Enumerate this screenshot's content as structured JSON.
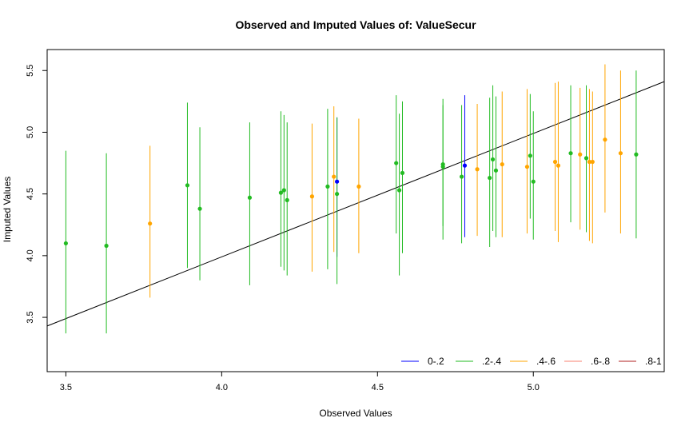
{
  "chart_data": {
    "type": "scatter",
    "title": "Observed and Imputed Values of: ValueSecur",
    "xlabel": "Observed Values",
    "ylabel": "Imputed Values",
    "xlim": [
      3.44,
      5.42
    ],
    "ylim": [
      3.06,
      5.67
    ],
    "x_ticks": [
      "3.5",
      "4.0",
      "4.5",
      "5.0"
    ],
    "y_ticks": [
      "3.5",
      "4.0",
      "4.5",
      "5.0",
      "5.5"
    ],
    "reference_line": {
      "x": [
        3.44,
        5.42
      ],
      "y": [
        3.43,
        5.41
      ]
    },
    "legend_position": "bottom-right",
    "series": [
      {
        "name": "0-.2",
        "color": "#0000ff",
        "points": [
          {
            "x": 4.37,
            "y": 4.6,
            "lo": 3.99,
            "hi": 5.12
          },
          {
            "x": 4.78,
            "y": 4.73,
            "lo": 4.15,
            "hi": 5.3
          }
        ]
      },
      {
        "name": ".2-.4",
        "color": "#22bb22",
        "points": [
          {
            "x": 3.5,
            "y": 4.1,
            "lo": 3.37,
            "hi": 4.85
          },
          {
            "x": 3.63,
            "y": 4.08,
            "lo": 3.37,
            "hi": 4.83
          },
          {
            "x": 3.89,
            "y": 4.57,
            "lo": 3.9,
            "hi": 5.24
          },
          {
            "x": 3.93,
            "y": 4.38,
            "lo": 3.8,
            "hi": 5.04
          },
          {
            "x": 4.09,
            "y": 4.47,
            "lo": 3.76,
            "hi": 5.08
          },
          {
            "x": 4.19,
            "y": 4.51,
            "lo": 3.91,
            "hi": 5.17
          },
          {
            "x": 4.2,
            "y": 4.53,
            "lo": 3.88,
            "hi": 5.14
          },
          {
            "x": 4.21,
            "y": 4.45,
            "lo": 3.84,
            "hi": 5.08
          },
          {
            "x": 4.34,
            "y": 4.56,
            "lo": 3.89,
            "hi": 5.19
          },
          {
            "x": 4.37,
            "y": 4.5,
            "lo": 3.77,
            "hi": 5.12
          },
          {
            "x": 4.56,
            "y": 4.75,
            "lo": 4.18,
            "hi": 5.3
          },
          {
            "x": 4.57,
            "y": 4.53,
            "lo": 3.84,
            "hi": 5.15
          },
          {
            "x": 4.58,
            "y": 4.67,
            "lo": 4.02,
            "hi": 5.25
          },
          {
            "x": 4.71,
            "y": 4.74,
            "lo": 4.13,
            "hi": 5.27
          },
          {
            "x": 4.71,
            "y": 4.72,
            "lo": 4.24,
            "hi": 5.22
          },
          {
            "x": 4.77,
            "y": 4.64,
            "lo": 4.1,
            "hi": 5.22
          },
          {
            "x": 4.86,
            "y": 4.63,
            "lo": 4.07,
            "hi": 5.28
          },
          {
            "x": 4.87,
            "y": 4.78,
            "lo": 4.2,
            "hi": 5.38
          },
          {
            "x": 4.88,
            "y": 4.69,
            "lo": 4.15,
            "hi": 5.29
          },
          {
            "x": 4.99,
            "y": 4.81,
            "lo": 4.3,
            "hi": 5.31
          },
          {
            "x": 5.0,
            "y": 4.6,
            "lo": 4.13,
            "hi": 5.17
          },
          {
            "x": 5.12,
            "y": 4.83,
            "lo": 4.27,
            "hi": 5.38
          },
          {
            "x": 5.17,
            "y": 4.79,
            "lo": 4.19,
            "hi": 5.38
          },
          {
            "x": 5.33,
            "y": 4.82,
            "lo": 4.14,
            "hi": 5.5
          }
        ]
      },
      {
        "name": ".4-.6",
        "color": "#ffa500",
        "points": [
          {
            "x": 3.77,
            "y": 4.26,
            "lo": 3.66,
            "hi": 4.89
          },
          {
            "x": 4.29,
            "y": 4.48,
            "lo": 3.87,
            "hi": 5.07
          },
          {
            "x": 4.36,
            "y": 4.64,
            "lo": 4.03,
            "hi": 5.21
          },
          {
            "x": 4.44,
            "y": 4.56,
            "lo": 4.02,
            "hi": 5.11
          },
          {
            "x": 4.82,
            "y": 4.7,
            "lo": 4.16,
            "hi": 5.23
          },
          {
            "x": 4.9,
            "y": 4.74,
            "lo": 4.15,
            "hi": 5.33
          },
          {
            "x": 4.98,
            "y": 4.72,
            "lo": 4.18,
            "hi": 5.35
          },
          {
            "x": 5.07,
            "y": 4.76,
            "lo": 4.2,
            "hi": 5.4
          },
          {
            "x": 5.08,
            "y": 4.73,
            "lo": 4.11,
            "hi": 5.41
          },
          {
            "x": 5.15,
            "y": 4.82,
            "lo": 4.21,
            "hi": 5.36
          },
          {
            "x": 5.18,
            "y": 4.76,
            "lo": 4.12,
            "hi": 5.35
          },
          {
            "x": 5.19,
            "y": 4.76,
            "lo": 4.1,
            "hi": 5.33
          },
          {
            "x": 5.23,
            "y": 4.94,
            "lo": 4.35,
            "hi": 5.55
          },
          {
            "x": 5.28,
            "y": 4.83,
            "lo": 4.18,
            "hi": 5.5
          }
        ]
      },
      {
        "name": ".6-.8",
        "color": "#fa8072",
        "points": []
      },
      {
        "name": ".8-1",
        "color": "#b22222",
        "points": []
      }
    ]
  }
}
